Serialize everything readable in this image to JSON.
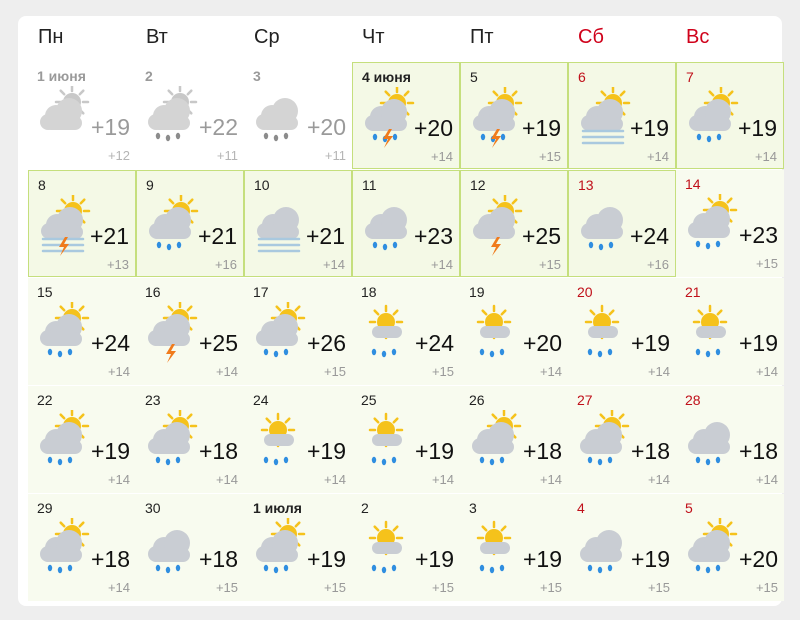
{
  "weekdays": [
    "Пн",
    "Вт",
    "Ср",
    "Чт",
    "Пт",
    "Сб",
    "Вс"
  ],
  "weeks": [
    [
      {
        "date": "1 июня",
        "day": "+19",
        "night": "+12"
      },
      {
        "date": "2",
        "day": "+22",
        "night": "+11"
      },
      {
        "date": "3",
        "day": "+20",
        "night": "+11"
      },
      {
        "date": "4 июня",
        "day": "+20",
        "night": "+14"
      },
      {
        "date": "5",
        "day": "+19",
        "night": "+15"
      },
      {
        "date": "6",
        "day": "+19",
        "night": "+14"
      },
      {
        "date": "7",
        "day": "+19",
        "night": "+14"
      }
    ],
    [
      {
        "date": "8",
        "day": "+21",
        "night": "+13"
      },
      {
        "date": "9",
        "day": "+21",
        "night": "+16"
      },
      {
        "date": "10",
        "day": "+21",
        "night": "+14"
      },
      {
        "date": "11",
        "day": "+23",
        "night": "+14"
      },
      {
        "date": "12",
        "day": "+25",
        "night": "+15"
      },
      {
        "date": "13",
        "day": "+24",
        "night": "+16"
      },
      {
        "date": "14",
        "day": "+23",
        "night": "+15"
      }
    ],
    [
      {
        "date": "15",
        "day": "+24",
        "night": "+14"
      },
      {
        "date": "16",
        "day": "+25",
        "night": "+14"
      },
      {
        "date": "17",
        "day": "+26",
        "night": "+15"
      },
      {
        "date": "18",
        "day": "+24",
        "night": "+15"
      },
      {
        "date": "19",
        "day": "+20",
        "night": "+14"
      },
      {
        "date": "20",
        "day": "+19",
        "night": "+14"
      },
      {
        "date": "21",
        "day": "+19",
        "night": "+14"
      }
    ],
    [
      {
        "date": "22",
        "day": "+19",
        "night": "+14"
      },
      {
        "date": "23",
        "day": "+18",
        "night": "+14"
      },
      {
        "date": "24",
        "day": "+19",
        "night": "+14"
      },
      {
        "date": "25",
        "day": "+19",
        "night": "+14"
      },
      {
        "date": "26",
        "day": "+18",
        "night": "+14"
      },
      {
        "date": "27",
        "day": "+18",
        "night": "+14"
      },
      {
        "date": "28",
        "day": "+18",
        "night": "+14"
      }
    ],
    [
      {
        "date": "29",
        "day": "+18",
        "night": "+14"
      },
      {
        "date": "30",
        "day": "+18",
        "night": "+15"
      },
      {
        "date": "1 июля",
        "day": "+19",
        "night": "+15"
      },
      {
        "date": "2",
        "day": "+19",
        "night": "+15"
      },
      {
        "date": "3",
        "day": "+19",
        "night": "+15"
      },
      {
        "date": "4",
        "day": "+19",
        "night": "+15"
      },
      {
        "date": "5",
        "day": "+20",
        "night": "+15"
      }
    ]
  ]
}
